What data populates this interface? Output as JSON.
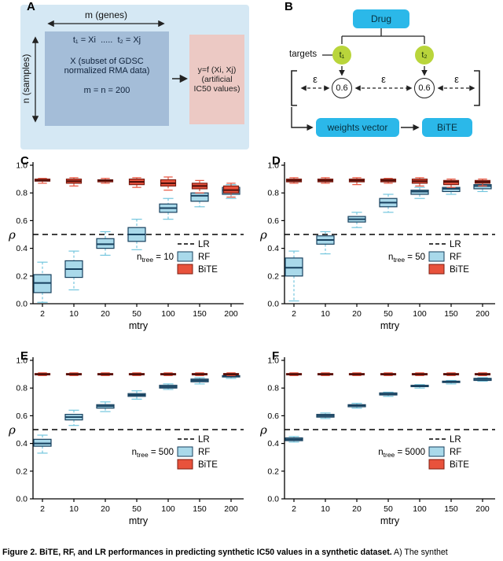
{
  "panel_a": {
    "label": "A",
    "top_arrow_label": "m (genes)",
    "matrix_header": "t₁ = Xi  .....  t₂ = Xj",
    "matrix_line1": "X (subset of GDSC normalized RMA data)",
    "matrix_line2": "m = n = 200",
    "left_arrow_label": "n (samples)",
    "output_text": "y=f (Xi, Xj) (artificial IC50 values)"
  },
  "panel_b": {
    "label": "B",
    "drug": "Drug",
    "targets_label": "targets",
    "t1": "t₁",
    "t2": "t₂",
    "w1": "0.6",
    "w2": "0.6",
    "epsilon": "ε",
    "weights_vector": "weights vector",
    "bite": "BiTE"
  },
  "caption": {
    "bold": "Figure 2. BiTE, RF, and LR performances in predicting synthetic IC50 values in a synthetic dataset.",
    "rest": " A) The synthet"
  },
  "colors": {
    "cyan_box": "#2bb8e9",
    "target_green": "#b9d53b",
    "panel_a_bg": "#d5e8f4",
    "matrix_fill": "#a4bdd8",
    "output_fill": "#ecc9c4",
    "rf_fill": "#a9d9ea",
    "bite_fill": "#e8523c"
  },
  "chart_data": [
    {
      "panel": "C",
      "type": "boxplot",
      "xlabel": "mtry",
      "ylabel": "ρ",
      "ylim": [
        0.0,
        1.0
      ],
      "yticks": [
        0.0,
        0.2,
        0.4,
        0.6,
        0.8,
        1.0
      ],
      "categories": [
        "2",
        "10",
        "20",
        "50",
        "100",
        "150",
        "200"
      ],
      "lr_line": 0.5,
      "ntree": {
        "prefix": "n",
        "sub": "tree",
        "rest": " = 10"
      },
      "legend": [
        "LR",
        "RF",
        "BiTE"
      ],
      "series": [
        {
          "name": "RF",
          "fill": "#a9d9ea",
          "border": "#17405e",
          "median": "#17405e",
          "whisker": "#74c6de",
          "width": 22,
          "boxes": [
            [
              0.01,
              0.08,
              0.15,
              0.21,
              0.3
            ],
            [
              0.1,
              0.19,
              0.25,
              0.31,
              0.38
            ],
            [
              0.35,
              0.4,
              0.43,
              0.47,
              0.52
            ],
            [
              0.39,
              0.45,
              0.5,
              0.55,
              0.61
            ],
            [
              0.61,
              0.66,
              0.69,
              0.72,
              0.76
            ],
            [
              0.7,
              0.74,
              0.78,
              0.8,
              0.83
            ],
            [
              0.76,
              0.79,
              0.82,
              0.84,
              0.86
            ]
          ]
        },
        {
          "name": "BiTE",
          "fill": "#e8523c",
          "border": "#7d1d12",
          "median": "#4a0d08",
          "whisker": "#e8523c",
          "width": 19,
          "boxes": [
            [
              0.87,
              0.885,
              0.89,
              0.9,
              0.905
            ],
            [
              0.85,
              0.87,
              0.885,
              0.9,
              0.91
            ],
            [
              0.87,
              0.88,
              0.89,
              0.895,
              0.905
            ],
            [
              0.84,
              0.86,
              0.88,
              0.9,
              0.91
            ],
            [
              0.82,
              0.85,
              0.87,
              0.895,
              0.915
            ],
            [
              0.8,
              0.83,
              0.85,
              0.87,
              0.89
            ],
            [
              0.77,
              0.8,
              0.82,
              0.85,
              0.87
            ]
          ]
        }
      ]
    },
    {
      "panel": "D",
      "type": "boxplot",
      "xlabel": "mtry",
      "ylabel": "ρ",
      "ylim": [
        0.0,
        1.0
      ],
      "yticks": [
        0.0,
        0.2,
        0.4,
        0.6,
        0.8,
        1.0
      ],
      "categories": [
        "2",
        "10",
        "20",
        "50",
        "100",
        "150",
        "200"
      ],
      "lr_line": 0.5,
      "ntree": {
        "prefix": "n",
        "sub": "tree",
        "rest": " = 50"
      },
      "legend": [
        "LR",
        "RF",
        "BiTE"
      ],
      "series": [
        {
          "name": "RF",
          "fill": "#a9d9ea",
          "border": "#17405e",
          "median": "#17405e",
          "whisker": "#74c6de",
          "width": 22,
          "boxes": [
            [
              0.02,
              0.2,
              0.26,
              0.33,
              0.38
            ],
            [
              0.36,
              0.43,
              0.46,
              0.49,
              0.52
            ],
            [
              0.55,
              0.59,
              0.61,
              0.63,
              0.66
            ],
            [
              0.66,
              0.7,
              0.73,
              0.76,
              0.79
            ],
            [
              0.76,
              0.79,
              0.81,
              0.82,
              0.84
            ],
            [
              0.79,
              0.81,
              0.83,
              0.84,
              0.86
            ],
            [
              0.81,
              0.83,
              0.85,
              0.86,
              0.87
            ]
          ]
        },
        {
          "name": "BiTE",
          "fill": "#e8523c",
          "border": "#7d1d12",
          "median": "#4a0d08",
          "whisker": "#e8523c",
          "width": 19,
          "boxes": [
            [
              0.87,
              0.88,
              0.89,
              0.9,
              0.91
            ],
            [
              0.87,
              0.88,
              0.89,
              0.9,
              0.91
            ],
            [
              0.86,
              0.88,
              0.89,
              0.9,
              0.91
            ],
            [
              0.87,
              0.88,
              0.89,
              0.9,
              0.905
            ],
            [
              0.85,
              0.87,
              0.885,
              0.9,
              0.91
            ],
            [
              0.84,
              0.86,
              0.88,
              0.89,
              0.9
            ],
            [
              0.85,
              0.87,
              0.88,
              0.89,
              0.9
            ]
          ]
        }
      ]
    },
    {
      "panel": "E",
      "type": "boxplot",
      "xlabel": "mtry",
      "ylabel": "ρ",
      "ylim": [
        0.0,
        1.0
      ],
      "yticks": [
        0.0,
        0.2,
        0.4,
        0.6,
        0.8,
        1.0
      ],
      "categories": [
        "2",
        "10",
        "20",
        "50",
        "100",
        "150",
        "200"
      ],
      "lr_line": 0.5,
      "ntree": {
        "prefix": "n",
        "sub": "tree",
        "rest": " = 500"
      },
      "legend": [
        "LR",
        "RF",
        "BiTE"
      ],
      "series": [
        {
          "name": "RF",
          "fill": "#a9d9ea",
          "border": "#17405e",
          "median": "#17405e",
          "whisker": "#74c6de",
          "width": 22,
          "boxes": [
            [
              0.33,
              0.38,
              0.4,
              0.43,
              0.46
            ],
            [
              0.53,
              0.57,
              0.59,
              0.61,
              0.64
            ],
            [
              0.63,
              0.655,
              0.67,
              0.68,
              0.7
            ],
            [
              0.72,
              0.74,
              0.75,
              0.76,
              0.78
            ],
            [
              0.79,
              0.8,
              0.81,
              0.82,
              0.83
            ],
            [
              0.83,
              0.845,
              0.855,
              0.865,
              0.875
            ],
            [
              0.87,
              0.88,
              0.885,
              0.89,
              0.895
            ]
          ]
        },
        {
          "name": "BiTE",
          "fill": "#e8523c",
          "border": "#7d1d12",
          "median": "#4a0d08",
          "whisker": "#e8523c",
          "width": 19,
          "boxes": [
            [
              0.89,
              0.895,
              0.9,
              0.905,
              0.91
            ],
            [
              0.89,
              0.895,
              0.9,
              0.905,
              0.91
            ],
            [
              0.89,
              0.895,
              0.9,
              0.905,
              0.91
            ],
            [
              0.89,
              0.895,
              0.9,
              0.905,
              0.91
            ],
            [
              0.89,
              0.895,
              0.9,
              0.905,
              0.91
            ],
            [
              0.89,
              0.895,
              0.9,
              0.905,
              0.91
            ],
            [
              0.89,
              0.895,
              0.9,
              0.905,
              0.91
            ]
          ]
        }
      ]
    },
    {
      "panel": "F",
      "type": "boxplot",
      "xlabel": "mtry",
      "ylabel": "ρ",
      "ylim": [
        0.0,
        1.0
      ],
      "yticks": [
        0.0,
        0.2,
        0.4,
        0.6,
        0.8,
        1.0
      ],
      "categories": [
        "2",
        "10",
        "20",
        "50",
        "100",
        "150",
        "200"
      ],
      "lr_line": 0.5,
      "ntree": {
        "prefix": "n",
        "sub": "tree",
        "rest": " = 5000"
      },
      "legend": [
        "LR",
        "RF",
        "BiTE"
      ],
      "series": [
        {
          "name": "RF",
          "fill": "#a9d9ea",
          "border": "#17405e",
          "median": "#17405e",
          "whisker": "#74c6de",
          "width": 22,
          "boxes": [
            [
              0.41,
              0.42,
              0.43,
              0.44,
              0.45
            ],
            [
              0.58,
              0.59,
              0.6,
              0.61,
              0.62
            ],
            [
              0.655,
              0.665,
              0.675,
              0.68,
              0.69
            ],
            [
              0.74,
              0.75,
              0.755,
              0.765,
              0.77
            ],
            [
              0.8,
              0.81,
              0.815,
              0.82,
              0.825
            ],
            [
              0.83,
              0.84,
              0.845,
              0.85,
              0.855
            ],
            [
              0.85,
              0.855,
              0.865,
              0.87,
              0.875
            ]
          ]
        },
        {
          "name": "BiTE",
          "fill": "#e8523c",
          "border": "#7d1d12",
          "median": "#4a0d08",
          "whisker": "#e8523c",
          "width": 19,
          "boxes": [
            [
              0.89,
              0.895,
              0.9,
              0.905,
              0.91
            ],
            [
              0.89,
              0.895,
              0.9,
              0.905,
              0.91
            ],
            [
              0.89,
              0.895,
              0.9,
              0.905,
              0.91
            ],
            [
              0.89,
              0.895,
              0.9,
              0.905,
              0.91
            ],
            [
              0.89,
              0.895,
              0.9,
              0.905,
              0.91
            ],
            [
              0.89,
              0.895,
              0.9,
              0.905,
              0.91
            ],
            [
              0.89,
              0.895,
              0.9,
              0.905,
              0.91
            ]
          ]
        }
      ]
    }
  ]
}
